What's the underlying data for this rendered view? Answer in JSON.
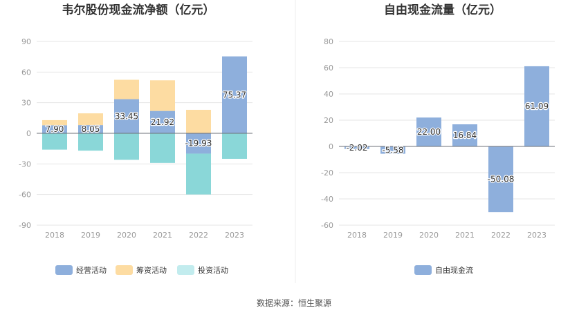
{
  "source": "数据来源：恒生聚源",
  "chart_data": [
    {
      "type": "bar",
      "stacked": true,
      "title": "韦尔股份现金流净额（亿元）",
      "categories": [
        "2018",
        "2019",
        "2020",
        "2021",
        "2022",
        "2023"
      ],
      "ylim": [
        -90,
        90
      ],
      "yticks": [
        90,
        60,
        30,
        0,
        -30,
        -60,
        -90
      ],
      "grid": true,
      "legend_position": "bottom",
      "series": [
        {
          "name": "经营活动",
          "color": "#8eafdc",
          "values": [
            7.9,
            8.05,
            33.45,
            21.92,
            -19.93,
            75.37
          ],
          "labels": [
            "7.90",
            "8.05",
            "33.45",
            "21.92",
            "-19.93",
            "75.37"
          ]
        },
        {
          "name": "筹资活动",
          "color": "#fddca2",
          "values": [
            5,
            11.5,
            19,
            30,
            23,
            0
          ]
        },
        {
          "name": "投资活动",
          "color": "#8ad7d8",
          "legend_color": "#c2ecee",
          "values": [
            -16,
            -17,
            -26,
            -29,
            -40,
            -25
          ]
        }
      ]
    },
    {
      "type": "bar",
      "title": "自由现金流量（亿元）",
      "categories": [
        "2018",
        "2019",
        "2020",
        "2021",
        "2022",
        "2023"
      ],
      "ylim": [
        -60,
        80
      ],
      "yticks": [
        80,
        60,
        40,
        20,
        0,
        -20,
        -40,
        -60
      ],
      "grid": true,
      "legend_position": "bottom",
      "series": [
        {
          "name": "自由现金流",
          "color": "#8eafdc",
          "values": [
            -2.02,
            -5.58,
            22.0,
            16.84,
            -50.08,
            61.09
          ],
          "labels": [
            "-2.02",
            "-5.58",
            "22.00",
            "16.84",
            "-50.08",
            "61.09"
          ]
        }
      ]
    }
  ]
}
